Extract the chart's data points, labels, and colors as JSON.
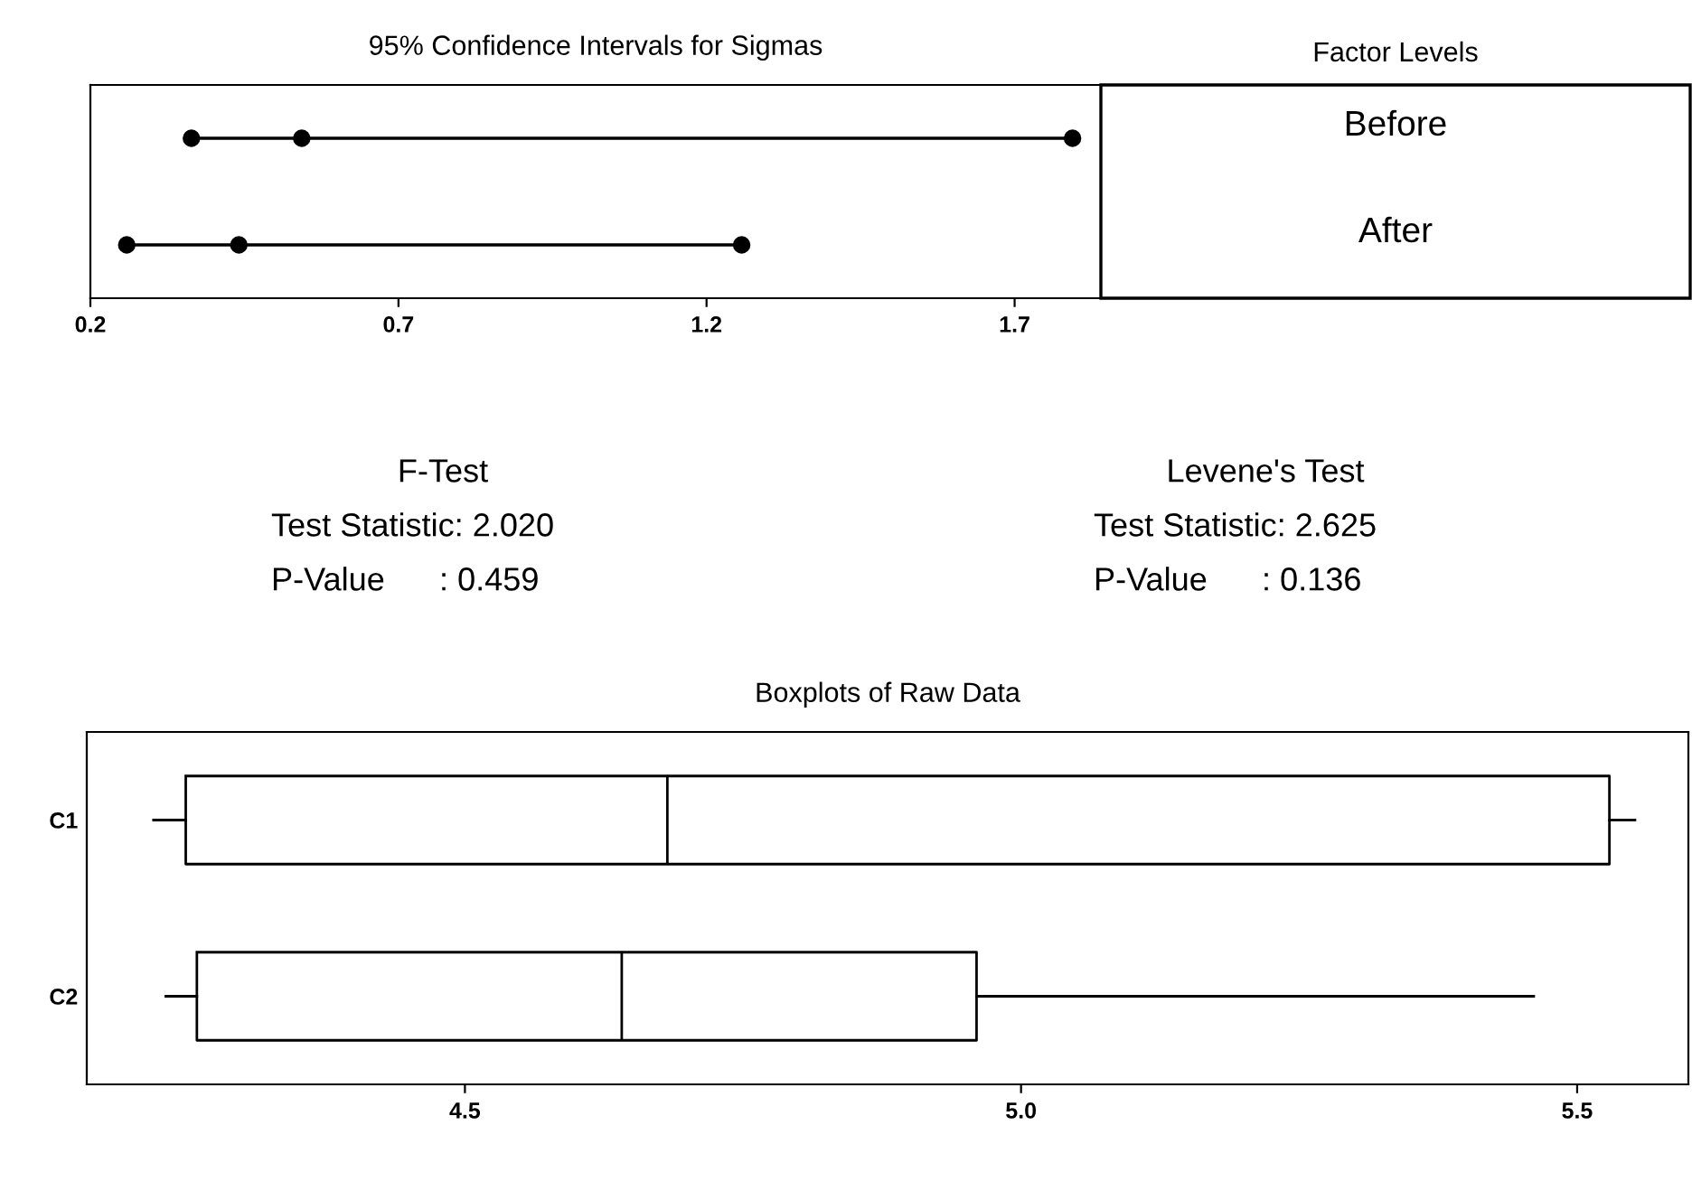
{
  "chart_data": [
    {
      "type": "scatter",
      "orientation": "horizontal",
      "title": "95% Confidence Intervals for Sigmas",
      "annotations": [
        "Factor Levels"
      ],
      "categories": [
        "Before",
        "After"
      ],
      "series": [
        {
          "color": "#000000",
          "values": [
            0.364,
            0.259
          ]
        },
        {
          "color": "#000000",
          "values": [
            0.543,
            0.441
          ]
        },
        {
          "color": "#000000",
          "values": [
            1.794,
            1.257
          ]
        }
      ],
      "marker": "circle",
      "xlim": [
        0.2,
        1.84
      ],
      "xticks": [
        0.2,
        0.7,
        1.2,
        1.7
      ],
      "grid": false
    },
    {
      "type": "other",
      "annotations": [
        "F-Test",
        "Test Statistic: 2.020",
        "P-Value      : 0.459",
        "Levene's Test",
        "Test Statistic: 2.625",
        "P-Value      : 0.136"
      ]
    },
    {
      "type": "box",
      "orientation": "horizontal",
      "title": "Boxplots of Raw Data",
      "categories": [
        "C1",
        "C2"
      ],
      "color": "#000000",
      "boxes": [
        {
          "low": 4.22,
          "q1": 4.249,
          "median": 4.682,
          "q3": 5.529,
          "high": 5.552
        },
        {
          "low": 4.231,
          "q1": 4.259,
          "median": 4.641,
          "q3": 4.96,
          "high": 5.461
        }
      ],
      "xlim": [
        4.16,
        5.6
      ],
      "xticks": [
        4.5,
        {
          "value": 5.0,
          "label": "5.0"
        },
        5.5
      ],
      "grid": false
    }
  ]
}
